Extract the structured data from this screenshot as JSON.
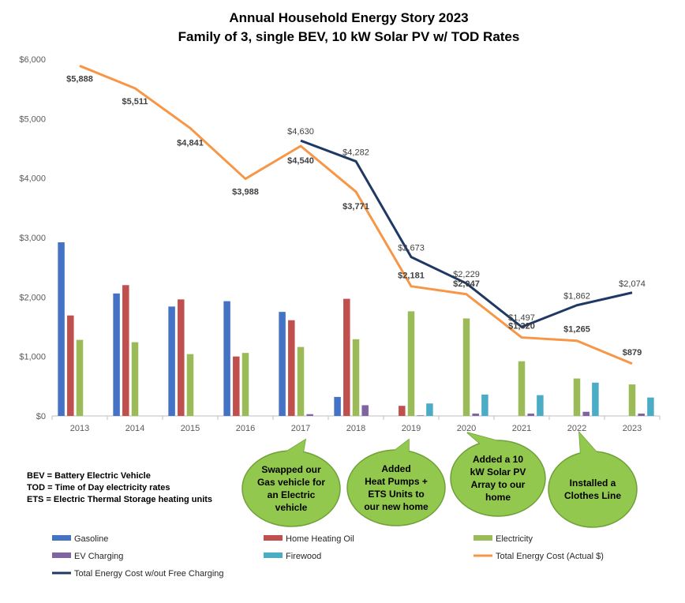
{
  "chart_data": {
    "type": "bar",
    "title": "Annual Household Energy Story 2023",
    "subtitle": "Family of 3, single BEV, 10 kW Solar PV w/ TOD Rates",
    "categories": [
      "2013",
      "2014",
      "2015",
      "2016",
      "2017",
      "2018",
      "2019",
      "2020",
      "2021",
      "2022",
      "2023"
    ],
    "ylim": [
      0,
      6000
    ],
    "yticks": [
      0,
      1000,
      2000,
      3000,
      4000,
      5000,
      6000
    ],
    "ytick_labels": [
      "$0",
      "$1,000",
      "$2,000",
      "$3,000",
      "$4,000",
      "$5,000",
      "$6,000"
    ],
    "grid": false,
    "legend_position": "bottom",
    "series": [
      {
        "name": "Gasoline",
        "kind": "bar",
        "color": "#4472C4",
        "values": [
          2920,
          2060,
          1840,
          1930,
          1750,
          320,
          0,
          0,
          0,
          0,
          0
        ]
      },
      {
        "name": "Home Heating Oil",
        "kind": "bar",
        "color": "#C0504D",
        "values": [
          1690,
          2200,
          1960,
          1000,
          1610,
          1970,
          170,
          0,
          0,
          0,
          0
        ]
      },
      {
        "name": "Electricity",
        "kind": "bar",
        "color": "#9BBB59",
        "values": [
          1280,
          1240,
          1040,
          1060,
          1160,
          1290,
          1760,
          1640,
          920,
          630,
          530
        ]
      },
      {
        "name": "EV Charging",
        "kind": "bar",
        "color": "#8064A2",
        "values": [
          0,
          0,
          0,
          0,
          30,
          180,
          10,
          40,
          40,
          70,
          40
        ]
      },
      {
        "name": "Firewood",
        "kind": "bar",
        "color": "#4BACC6",
        "values": [
          0,
          0,
          0,
          0,
          0,
          0,
          210,
          360,
          350,
          560,
          310
        ]
      },
      {
        "name": "Total Energy Cost (Actual $)",
        "kind": "line",
        "color": "#F79646",
        "values": [
          5888,
          5511,
          4841,
          3988,
          4540,
          3771,
          2181,
          2047,
          1320,
          1265,
          879
        ],
        "labels": [
          "$5,888",
          "$5,511",
          "$4,841",
          "$3,988",
          "$4,540",
          "$3,771",
          "$2,181",
          "$2,047",
          "$1,320",
          "$1,265",
          "$879"
        ]
      },
      {
        "name": "Total Energy Cost w/out Free Charging",
        "kind": "line",
        "color": "#1F3864",
        "values": [
          null,
          null,
          null,
          null,
          4630,
          4282,
          2673,
          2229,
          1497,
          1862,
          2074
        ],
        "labels": [
          null,
          null,
          null,
          null,
          "$4,630",
          "$4,282",
          "$2,673",
          "$2,229",
          "$1,497",
          "$1,862",
          "$2,074"
        ]
      }
    ],
    "annotations": [
      {
        "category": "2017",
        "lines": [
          "Swapped our",
          "Gas vehicle for",
          "an Electric",
          "vehicle"
        ]
      },
      {
        "category": "2019",
        "lines": [
          "Added",
          "Heat Pumps +",
          "ETS Units to",
          "our new home"
        ]
      },
      {
        "category": "2020",
        "lines": [
          "Added a 10",
          "kW Solar PV",
          "Array to our",
          "home"
        ]
      },
      {
        "category": "2022",
        "lines": [
          "Installed a",
          "Clothes Line"
        ]
      }
    ],
    "notes": [
      "BEV = Battery Electric Vehicle",
      "TOD = Time of Day electricity rates",
      "ETS = Electric Thermal Storage heating units"
    ]
  },
  "colors": {
    "callout_fill": "#92C84E",
    "callout_stroke": "#6FA03A",
    "axis": "#BFBFBF"
  }
}
